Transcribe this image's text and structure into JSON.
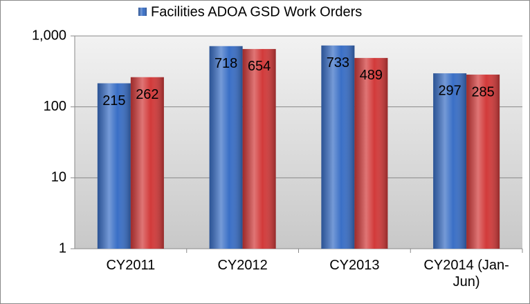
{
  "chart_data": {
    "type": "bar",
    "categories": [
      "CY2011",
      "CY2012",
      "CY2013",
      "CY2014 (Jan-Jun)"
    ],
    "series": [
      {
        "name": "Facilities ADOA GSD Work Orders",
        "color": "#3a6fc6",
        "values": [
          215,
          718,
          733,
          297
        ]
      },
      {
        "color": "#d23a3a",
        "values": [
          262,
          654,
          489,
          285
        ]
      }
    ],
    "log_scale": true,
    "ylim": [
      1,
      1000
    ],
    "yticks": [
      1,
      10,
      100,
      {
        "value": 1000,
        "label": "1,000"
      }
    ],
    "grid": true,
    "legend": "top"
  }
}
